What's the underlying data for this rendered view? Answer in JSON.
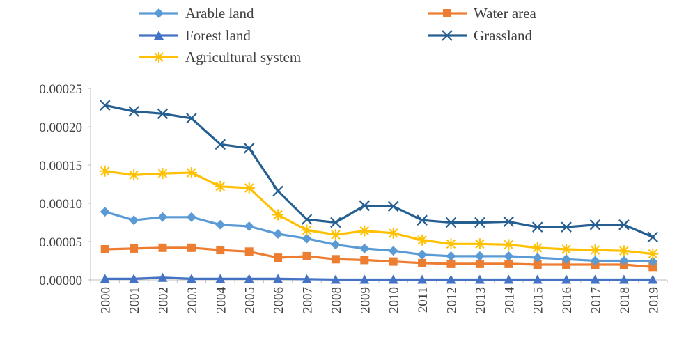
{
  "chart_data": {
    "type": "line",
    "title": "",
    "xlabel": "",
    "ylabel": "",
    "categories": [
      "2000",
      "2001",
      "2002",
      "2003",
      "2004",
      "2005",
      "2006",
      "2007",
      "2008",
      "2009",
      "2010",
      "2011",
      "2012",
      "2013",
      "2014",
      "2015",
      "2016",
      "2017",
      "2018",
      "2019"
    ],
    "ylim": [
      0,
      0.00025
    ],
    "yticks": [
      "0.00000",
      "0.00005",
      "0.00010",
      "0.00015",
      "0.00020",
      "0.00025"
    ],
    "ytick_values": [
      0,
      5e-05,
      0.0001,
      0.00015,
      0.0002,
      0.00025
    ],
    "legend_position": "top",
    "series": [
      {
        "name": "Arable land",
        "color": "#5b9bd5",
        "marker": "diamond",
        "values": [
          8.9e-05,
          7.8e-05,
          8.2e-05,
          8.2e-05,
          7.2e-05,
          7e-05,
          6e-05,
          5.4e-05,
          4.6e-05,
          4.1e-05,
          3.8e-05,
          3.3e-05,
          3.1e-05,
          3.1e-05,
          3.1e-05,
          2.9e-05,
          2.7e-05,
          2.5e-05,
          2.5e-05,
          2.4e-05
        ]
      },
      {
        "name": "Water area",
        "color": "#ed7d31",
        "marker": "square",
        "values": [
          4e-05,
          4.1e-05,
          4.2e-05,
          4.2e-05,
          3.9e-05,
          3.7e-05,
          2.9e-05,
          3.1e-05,
          2.7e-05,
          2.6e-05,
          2.4e-05,
          2.2e-05,
          2.1e-05,
          2.1e-05,
          2.1e-05,
          2e-05,
          2e-05,
          2e-05,
          2e-05,
          1.7e-05
        ]
      },
      {
        "name": "Forest land",
        "color": "#4472c4",
        "marker": "triangle",
        "values": [
          1.5e-06,
          1.5e-06,
          3e-06,
          1.5e-06,
          1.5e-06,
          1.5e-06,
          1.5e-06,
          1e-06,
          5e-07,
          5e-07,
          5e-07,
          5e-07,
          5e-07,
          5e-07,
          5e-07,
          5e-07,
          5e-07,
          5e-07,
          5e-07,
          5e-07
        ]
      },
      {
        "name": "Grassland",
        "color": "#255e91",
        "marker": "x",
        "values": [
          0.000228,
          0.00022,
          0.000217,
          0.000211,
          0.000177,
          0.000172,
          0.000116,
          7.9e-05,
          7.5e-05,
          9.7e-05,
          9.6e-05,
          7.8e-05,
          7.5e-05,
          7.5e-05,
          7.6e-05,
          6.9e-05,
          6.9e-05,
          7.2e-05,
          7.2e-05,
          5.6e-05
        ]
      },
      {
        "name": "Agricultural system",
        "color": "#ffc000",
        "marker": "star",
        "values": [
          0.000142,
          0.000137,
          0.000139,
          0.00014,
          0.000122,
          0.00012,
          8.5e-05,
          6.5e-05,
          5.9e-05,
          6.4e-05,
          6.1e-05,
          5.2e-05,
          4.7e-05,
          4.7e-05,
          4.6e-05,
          4.2e-05,
          4e-05,
          3.9e-05,
          3.8e-05,
          3.4e-05
        ]
      }
    ]
  }
}
